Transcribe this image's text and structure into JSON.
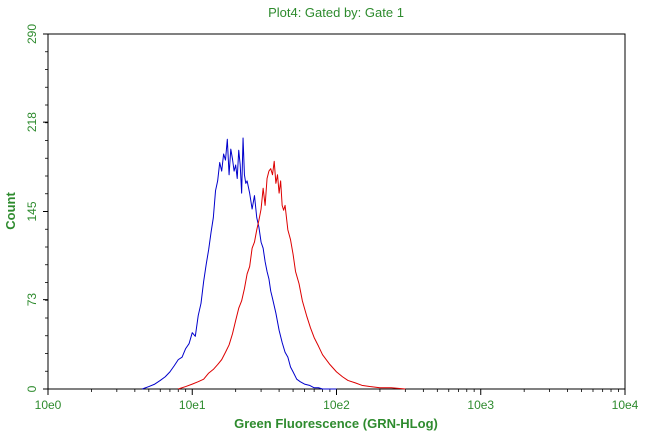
{
  "chart_data": {
    "type": "line",
    "title": "Plot4:  Gated by: Gate 1",
    "xlabel": "Green Fluorescence (GRN-HLog)",
    "ylabel": "Count",
    "x_scale": "log",
    "xlim": [
      1,
      10000
    ],
    "ylim": [
      0,
      290
    ],
    "x_ticks": [
      {
        "value": 1,
        "label": "10e0"
      },
      {
        "value": 10,
        "label": "10e1"
      },
      {
        "value": 100,
        "label": "10e2"
      },
      {
        "value": 1000,
        "label": "10e3"
      },
      {
        "value": 10000,
        "label": "10e4"
      }
    ],
    "y_ticks": [
      {
        "value": 0,
        "label": "0"
      },
      {
        "value": 73,
        "label": "73"
      },
      {
        "value": 145,
        "label": "145"
      },
      {
        "value": 218,
        "label": "218"
      },
      {
        "value": 290,
        "label": "290"
      }
    ],
    "grid": false,
    "series": [
      {
        "color": "#0000cc",
        "x": [
          4.5,
          5.0,
          5.5,
          6.0,
          6.5,
          7.0,
          7.5,
          8.0,
          8.5,
          9.0,
          9.5,
          10.0,
          10.5,
          11.0,
          11.5,
          12.0,
          12.5,
          13.0,
          13.5,
          14.0,
          14.5,
          15.0,
          15.5,
          16.0,
          16.5,
          17.0,
          17.5,
          18.0,
          18.5,
          19.0,
          19.5,
          20.0,
          20.5,
          21.0,
          21.5,
          22.0,
          22.5,
          23.0,
          23.5,
          24.0,
          25.0,
          26.0,
          27.0,
          28.0,
          29.0,
          30.0,
          31.0,
          32.0,
          33.0,
          34.0,
          35.0,
          36.0,
          38.0,
          40.0,
          42.0,
          44.0,
          46.0,
          48.0,
          50.0,
          53.0,
          56.0,
          60.0,
          65.0,
          70.0,
          75.0,
          80.0,
          90.0,
          100.0
        ],
        "y": [
          0,
          2,
          4,
          7,
          10,
          14,
          19,
          24,
          26,
          33,
          37,
          46,
          43,
          60,
          70,
          88,
          102,
          114,
          128,
          140,
          162,
          170,
          185,
          178,
          192,
          187,
          204,
          175,
          196,
          188,
          178,
          183,
          172,
          195,
          183,
          160,
          205,
          175,
          168,
          170,
          160,
          147,
          158,
          140,
          132,
          120,
          115,
          104,
          96,
          90,
          80,
          74,
          62,
          48,
          38,
          30,
          26,
          18,
          14,
          8,
          6,
          4,
          3,
          1,
          1,
          0,
          0,
          0
        ]
      },
      {
        "color": "#dd0000",
        "x": [
          8.0,
          9.0,
          10.0,
          11.0,
          12.0,
          13.0,
          14.0,
          15.0,
          16.0,
          17.0,
          18.0,
          19.0,
          20.0,
          21.0,
          22.0,
          23.0,
          24.0,
          25.0,
          26.0,
          27.0,
          28.0,
          29.0,
          30.0,
          31.0,
          32.0,
          33.0,
          34.0,
          35.0,
          36.0,
          37.0,
          38.0,
          39.0,
          40.0,
          41.0,
          42.0,
          43.0,
          44.0,
          46.0,
          48.0,
          50.0,
          52.0,
          55.0,
          58.0,
          62.0,
          66.0,
          70.0,
          75.0,
          80.0,
          90.0,
          100.0,
          110.0,
          120.0,
          135.0,
          150.0,
          170.0,
          200.0,
          240.0,
          300.0
        ],
        "y": [
          0,
          2,
          4,
          6,
          8,
          13,
          16,
          20,
          24,
          30,
          36,
          45,
          56,
          66,
          72,
          82,
          94,
          100,
          115,
          120,
          130,
          138,
          147,
          164,
          150,
          172,
          178,
          180,
          175,
          186,
          168,
          175,
          160,
          170,
          150,
          146,
          150,
          130,
          122,
          110,
          96,
          86,
          72,
          60,
          50,
          42,
          35,
          28,
          20,
          14,
          10,
          7,
          5,
          3,
          2,
          1,
          1,
          0
        ]
      }
    ]
  }
}
